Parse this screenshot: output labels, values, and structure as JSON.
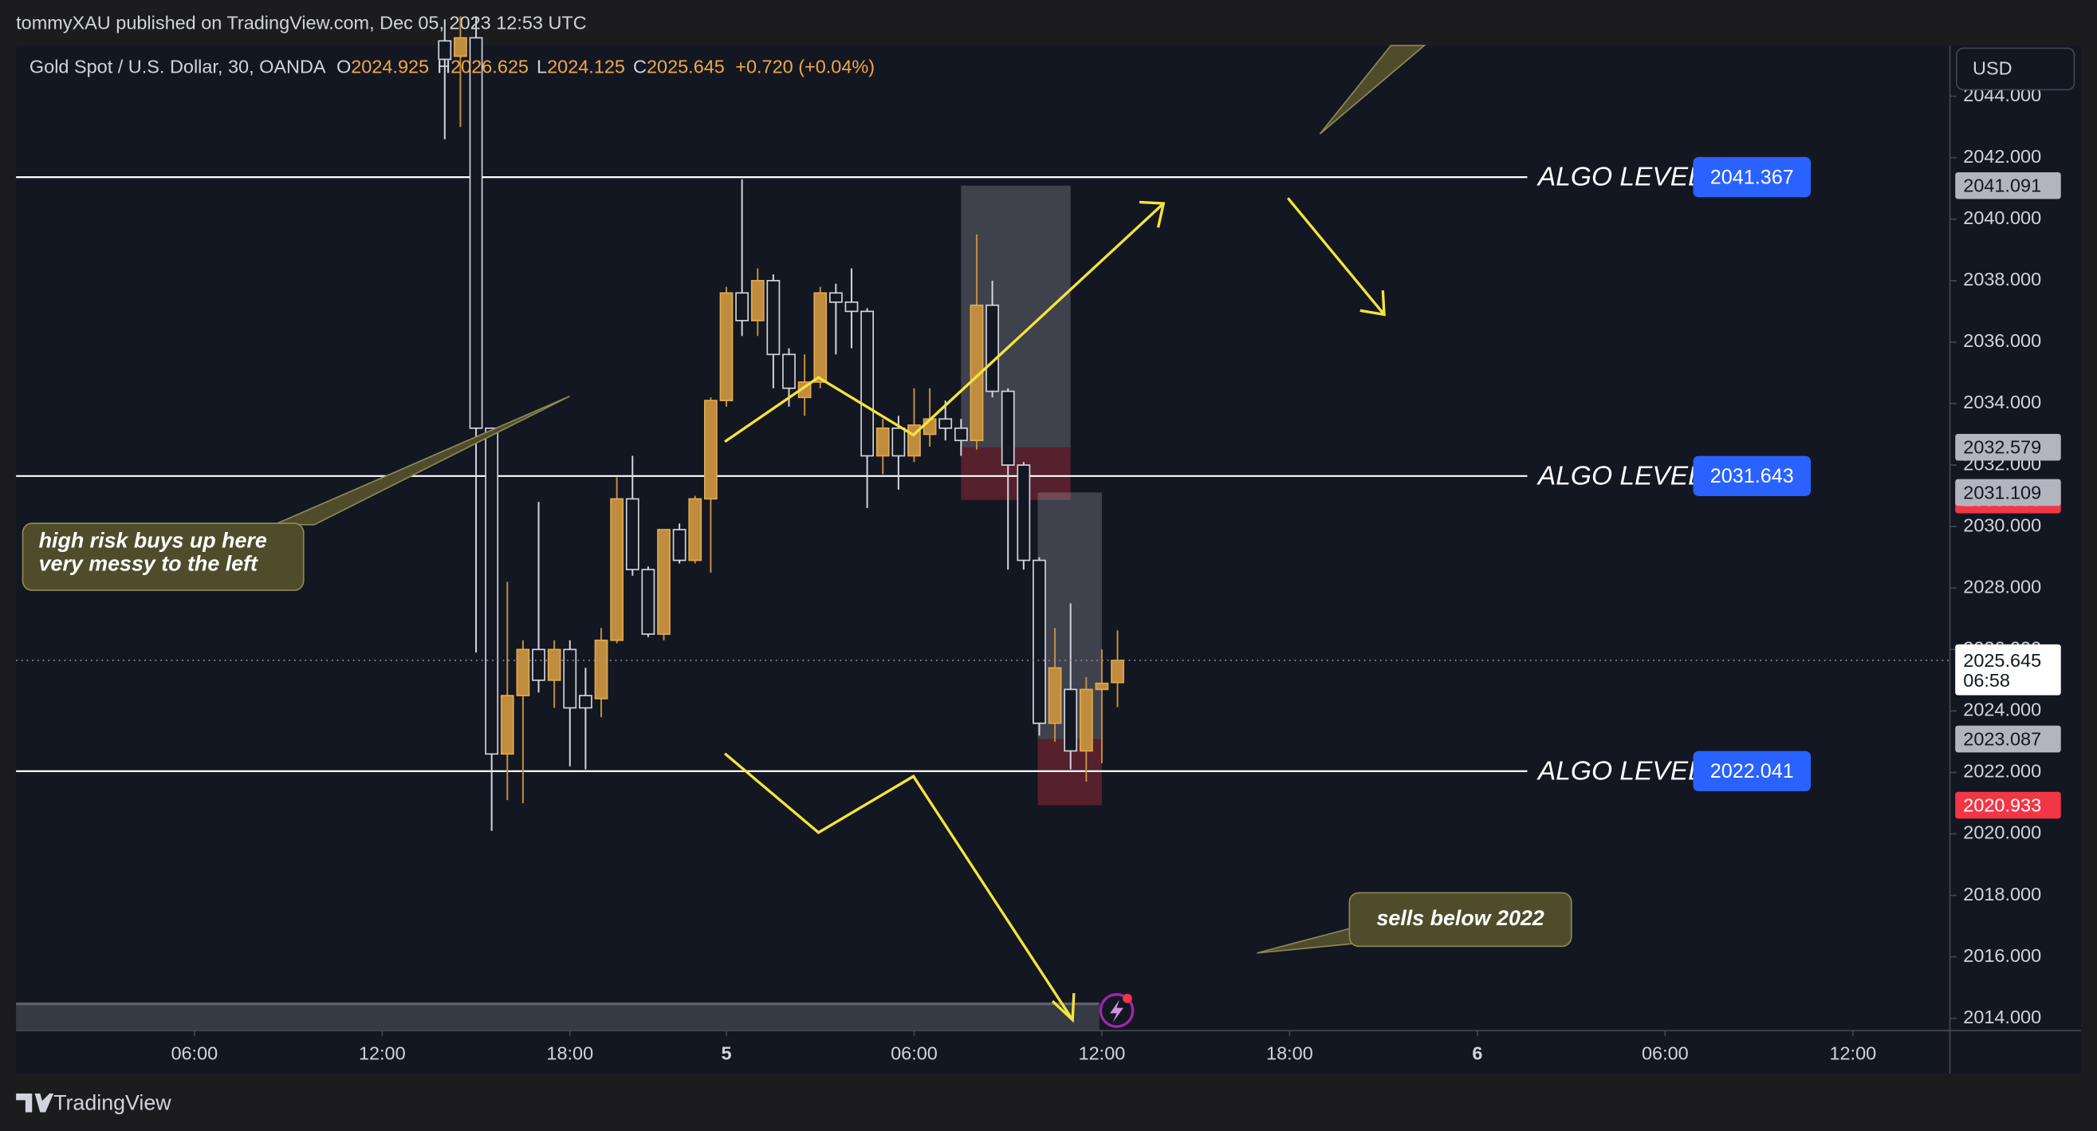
{
  "chart_data": {
    "type": "candlestick",
    "published": "tommyXAU published on TradingView.com, Dec 05, 2023 12:53 UTC",
    "symbol": "Gold Spot / U.S. Dollar, 30, OANDA",
    "ohlc_letters": [
      "O",
      "H",
      "L",
      "C"
    ],
    "change": "+0.720 (+0.04%)",
    "currency": "USD",
    "brand": "TradingView",
    "countdown": "06:58",
    "up_color": "#c08d3e",
    "down_color": "#d1d4dc",
    "grid": false,
    "x": [
      16,
      17,
      18,
      19,
      20,
      21,
      22,
      23,
      24,
      25,
      26,
      27,
      28,
      29,
      30,
      31,
      32,
      33,
      34,
      35,
      36,
      37,
      38,
      39,
      40,
      41,
      42,
      43,
      44,
      45,
      46,
      47,
      48,
      49,
      50,
      51,
      52,
      53,
      54,
      55,
      56,
      57,
      58,
      59
    ],
    "open": [
      2045.8,
      2045.3,
      2045.9,
      2033.2,
      2022.6,
      2024.5,
      2026.0,
      2025.0,
      2026.0,
      2024.5,
      2024.4,
      2026.3,
      2030.9,
      2028.6,
      2026.5,
      2029.9,
      2028.9,
      2030.9,
      2034.1,
      2037.6,
      2036.7,
      2038.0,
      2035.6,
      2034.2,
      2034.7,
      2037.6,
      2037.3,
      2037.0,
      2032.3,
      2033.2,
      2032.3,
      2033.0,
      2033.5,
      2033.2,
      2032.8,
      2037.2,
      2034.4,
      2032.0,
      2028.9,
      2023.6,
      2024.7,
      2022.7,
      2024.7,
      2024.925
    ],
    "high": [
      2046.5,
      2046.6,
      2046.6,
      2033.2,
      2028.2,
      2026.3,
      2030.8,
      2026.3,
      2026.3,
      2025.4,
      2026.7,
      2031.6,
      2032.3,
      2028.7,
      2029.9,
      2030.1,
      2031.0,
      2034.2,
      2037.8,
      2041.3,
      2038.4,
      2038.2,
      2035.8,
      2035.6,
      2037.8,
      2037.9,
      2038.4,
      2037.1,
      2033.5,
      2033.6,
      2034.5,
      2034.5,
      2034.1,
      2033.5,
      2039.5,
      2038.0,
      2034.5,
      2032.1,
      2029.0,
      2026.7,
      2027.5,
      2025.1,
      2026.0,
      2026.625
    ],
    "low": [
      2042.6,
      2043.0,
      2025.9,
      2020.1,
      2021.1,
      2021.0,
      2024.6,
      2024.1,
      2022.2,
      2022.1,
      2023.8,
      2026.2,
      2028.4,
      2026.4,
      2026.3,
      2028.8,
      2028.8,
      2028.5,
      2033.9,
      2036.2,
      2036.2,
      2034.5,
      2033.9,
      2033.6,
      2034.5,
      2035.6,
      2035.8,
      2030.6,
      2031.7,
      2031.2,
      2032.1,
      2032.6,
      2032.8,
      2032.3,
      2032.5,
      2034.2,
      2028.6,
      2028.6,
      2023.2,
      2023.0,
      2022.1,
      2021.7,
      2022.3,
      2024.125
    ],
    "close": [
      2045.2,
      2045.9,
      2033.2,
      2022.6,
      2024.5,
      2026.0,
      2025.0,
      2026.0,
      2024.1,
      2024.1,
      2026.3,
      2030.9,
      2028.6,
      2026.5,
      2029.9,
      2028.9,
      2030.9,
      2034.1,
      2037.6,
      2036.7,
      2038.0,
      2035.6,
      2034.5,
      2034.7,
      2037.6,
      2037.3,
      2037.0,
      2032.3,
      2033.2,
      2032.3,
      2033.3,
      2033.5,
      2033.2,
      2032.8,
      2037.2,
      2034.4,
      2032.0,
      2028.9,
      2023.6,
      2025.4,
      2022.7,
      2024.7,
      2024.9,
      2025.645
    ],
    "xlim": [
      -11.4,
      112.2
    ],
    "xticks": [
      {
        "value": 0,
        "label": "06:00"
      },
      {
        "value": 12,
        "label": "12:00"
      },
      {
        "value": 24,
        "label": "18:00"
      },
      {
        "value": 34,
        "label": "5"
      },
      {
        "value": 46,
        "label": "06:00"
      },
      {
        "value": 58,
        "label": "12:00"
      },
      {
        "value": 70,
        "label": "18:00"
      },
      {
        "value": 82,
        "label": "6"
      },
      {
        "value": 94,
        "label": "06:00"
      },
      {
        "value": 106,
        "label": "12:00"
      }
    ],
    "ylim": [
      2013.6,
      2045.65
    ],
    "yticks": [
      {
        "value": 2014,
        "label": "2014.000"
      },
      {
        "value": 2016,
        "label": "2016.000"
      },
      {
        "value": 2018,
        "label": "2018.000"
      },
      {
        "value": 2020,
        "label": "2020.000"
      },
      {
        "value": 2022,
        "label": "2022.000"
      },
      {
        "value": 2024,
        "label": "2024.000"
      },
      {
        "value": 2026,
        "label": "2026.000"
      },
      {
        "value": 2028,
        "label": "2028.000"
      },
      {
        "value": 2030,
        "label": "2030.000"
      },
      {
        "value": 2032,
        "label": "2032.000"
      },
      {
        "value": 2034,
        "label": "2034.000"
      },
      {
        "value": 2036,
        "label": "2036.000"
      },
      {
        "value": 2038,
        "label": "2038.000"
      },
      {
        "value": 2040,
        "label": "2040.000"
      },
      {
        "value": 2042,
        "label": "2042.000"
      },
      {
        "value": 2044,
        "label": "2044.000"
      }
    ],
    "levels": [
      {
        "label": "ALGO LEVEL",
        "value": 2041.367
      },
      {
        "label": "ALGO LEVEL",
        "value": 2031.643
      },
      {
        "label": "ALGO LEVEL",
        "value": 2022.041
      }
    ],
    "level_color": "#2962ff",
    "positions": [
      {
        "start": 49,
        "end": 56,
        "target": 2041.091,
        "entry": 2032.579,
        "stop": 2030.865
      },
      {
        "start": 53.9,
        "end": 58,
        "target": 2031.109,
        "entry": 2023.087,
        "stop": 2020.933
      }
    ],
    "annotations": [
      "high risk buys up here",
      "very messy to the left",
      "sells below 2022"
    ]
  }
}
